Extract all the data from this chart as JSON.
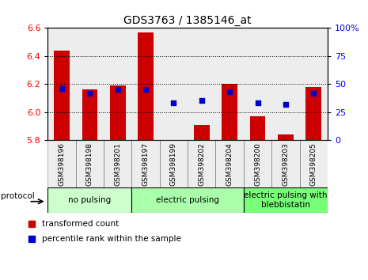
{
  "title": "GDS3763 / 1385146_at",
  "samples": [
    "GSM398196",
    "GSM398198",
    "GSM398201",
    "GSM398197",
    "GSM398199",
    "GSM398202",
    "GSM398204",
    "GSM398200",
    "GSM398203",
    "GSM398205"
  ],
  "transformed_count": [
    6.44,
    6.16,
    6.19,
    6.57,
    5.8,
    5.91,
    6.2,
    5.97,
    5.84,
    6.18
  ],
  "percentile_rank": [
    46,
    42,
    45,
    45,
    33,
    35,
    43,
    33,
    32,
    42
  ],
  "ylim_left": [
    5.8,
    6.6
  ],
  "ylim_right": [
    0,
    100
  ],
  "yticks_left": [
    5.8,
    6.0,
    6.2,
    6.4,
    6.6
  ],
  "yticks_right": [
    0,
    25,
    50,
    75,
    100
  ],
  "groups": [
    {
      "label": "no pulsing",
      "start": 0,
      "end": 3,
      "color": "#ccffcc"
    },
    {
      "label": "electric pulsing",
      "start": 3,
      "end": 7,
      "color": "#aaffaa"
    },
    {
      "label": "electric pulsing with\nblebbistatin",
      "start": 7,
      "end": 10,
      "color": "#77ff77"
    }
  ],
  "bar_color": "#cc0000",
  "dot_color": "#0000cc",
  "bar_width": 0.55,
  "dot_size": 22,
  "grid_color": "#000000",
  "tick_label_size": 6.5,
  "title_fontsize": 10,
  "legend_fontsize": 7.5,
  "group_fontsize": 7.5,
  "col_bg_color": "#cccccc"
}
